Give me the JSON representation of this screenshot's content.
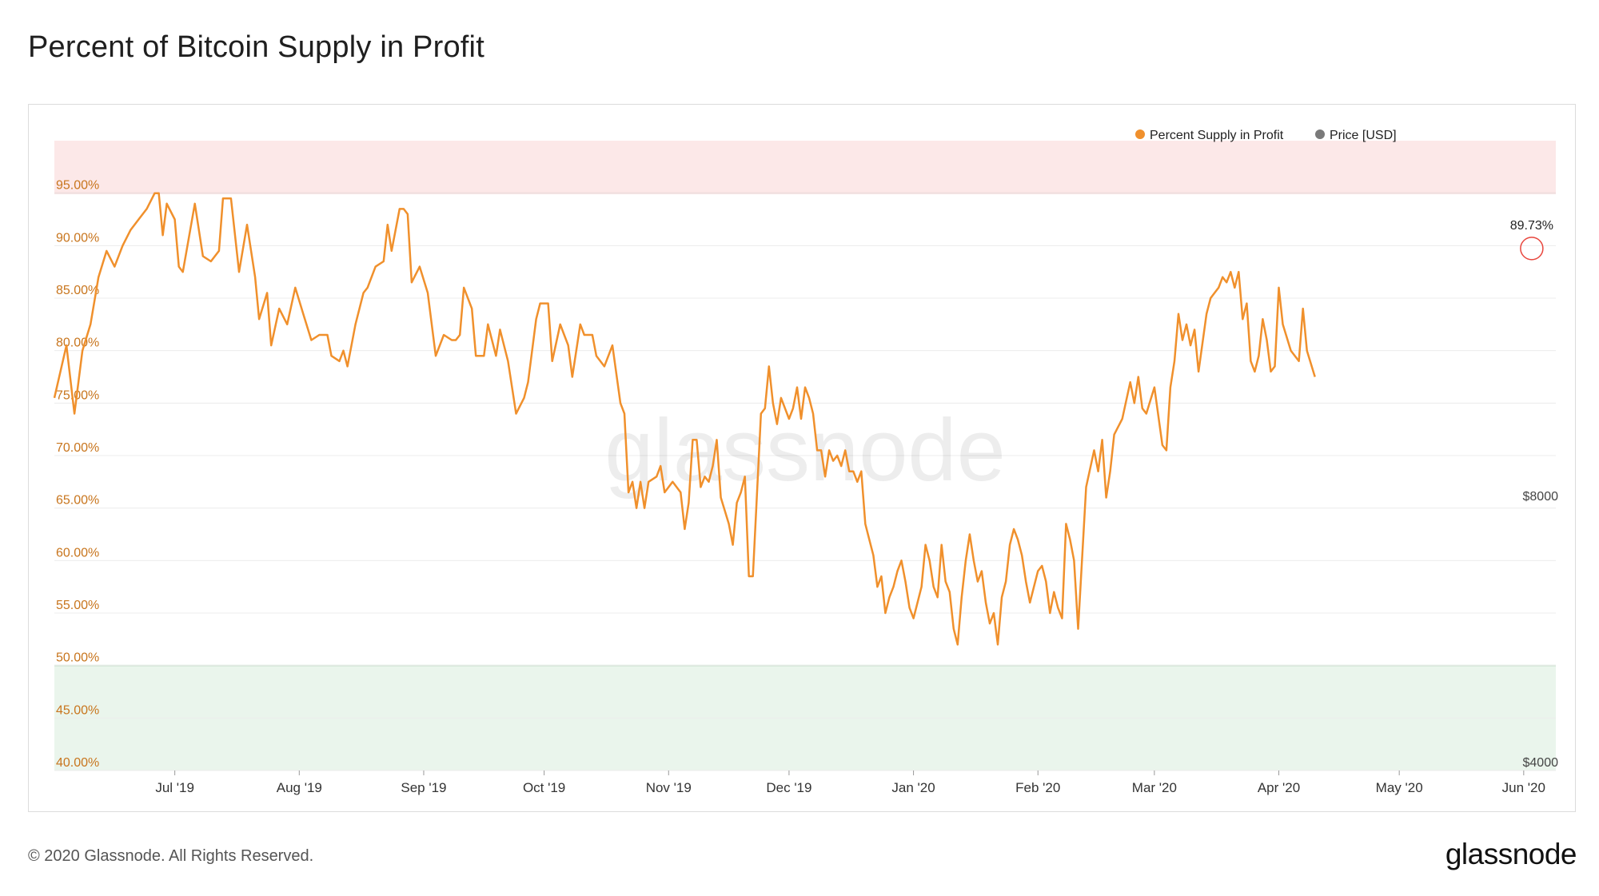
{
  "page": {
    "title": "Percent of Bitcoin Supply in Profit",
    "copyright": "© 2020 Glassnode. All Rights Reserved.",
    "brand": "glassnode",
    "watermark": "glassnode"
  },
  "colors": {
    "profit_line": "#f0902c",
    "price_line": "#7a7a7a",
    "high_zone": "#fce8e8",
    "high_zone_line": "#e9a3a3",
    "low_zone": "#eaf5ec",
    "low_zone_line": "#a8d3b0",
    "grid": "#ececec",
    "marker": "#e8453c"
  },
  "chart_data": {
    "type": "line",
    "title": "Percent of Bitcoin Supply in Profit",
    "legend": {
      "placement": "top-right",
      "items": [
        "Percent Supply in Profit",
        "Price [USD]"
      ]
    },
    "grid": true,
    "left_axis": {
      "ylim": [
        40,
        100
      ],
      "ticks": [
        95,
        90,
        85,
        80,
        75,
        70,
        65,
        60,
        55,
        50,
        45,
        40
      ],
      "tick_labels": [
        "95.00%",
        "90.00%",
        "85.00%",
        "80.00%",
        "75.00%",
        "70.00%",
        "65.00%",
        "60.00%",
        "55.00%",
        "50.00%",
        "45.00%",
        "40.00%"
      ]
    },
    "right_axis": {
      "scale": "log",
      "tick_labels": [
        {
          "value": 8000,
          "label": "$8000"
        },
        {
          "value": 4000,
          "label": "$4000"
        }
      ]
    },
    "x_axis": {
      "range": [
        "2019-06-01",
        "2020-06-09"
      ],
      "ticks": [
        {
          "date": "2019-07-01",
          "label": "Jul '19"
        },
        {
          "date": "2019-08-01",
          "label": "Aug '19"
        },
        {
          "date": "2019-09-01",
          "label": "Sep '19"
        },
        {
          "date": "2019-10-01",
          "label": "Oct '19"
        },
        {
          "date": "2019-11-01",
          "label": "Nov '19"
        },
        {
          "date": "2019-12-01",
          "label": "Dec '19"
        },
        {
          "date": "2020-01-01",
          "label": "Jan '20"
        },
        {
          "date": "2020-02-01",
          "label": "Feb '20"
        },
        {
          "date": "2020-03-01",
          "label": "Mar '20"
        },
        {
          "date": "2020-04-01",
          "label": "Apr '20"
        },
        {
          "date": "2020-05-01",
          "label": "May '20"
        },
        {
          "date": "2020-06-01",
          "label": "Jun '20"
        }
      ]
    },
    "zones": [
      {
        "name": "high",
        "from": 95,
        "to": 100
      },
      {
        "name": "low",
        "from": 40,
        "to": 50
      }
    ],
    "annotation": {
      "date": "2020-06-03",
      "value": 89.73,
      "label": "89.73%"
    },
    "series": [
      {
        "name": "Percent Supply in Profit",
        "axis": "left",
        "points": [
          [
            "2019-06-01",
            75.5
          ],
          [
            "2019-06-04",
            80.5
          ],
          [
            "2019-06-06",
            74.0
          ],
          [
            "2019-06-08",
            80.0
          ],
          [
            "2019-06-10",
            82.5
          ],
          [
            "2019-06-12",
            87.0
          ],
          [
            "2019-06-14",
            89.5
          ],
          [
            "2019-06-16",
            88.0
          ],
          [
            "2019-06-18",
            90.0
          ],
          [
            "2019-06-20",
            91.5
          ],
          [
            "2019-06-22",
            92.5
          ],
          [
            "2019-06-24",
            93.5
          ],
          [
            "2019-06-26",
            95.0
          ],
          [
            "2019-06-27",
            95.0
          ],
          [
            "2019-06-28",
            91.0
          ],
          [
            "2019-06-29",
            94.0
          ],
          [
            "2019-07-01",
            92.5
          ],
          [
            "2019-07-02",
            88.0
          ],
          [
            "2019-07-03",
            87.5
          ],
          [
            "2019-07-06",
            94.0
          ],
          [
            "2019-07-08",
            89.0
          ],
          [
            "2019-07-10",
            88.5
          ],
          [
            "2019-07-12",
            89.5
          ],
          [
            "2019-07-13",
            94.5
          ],
          [
            "2019-07-15",
            94.5
          ],
          [
            "2019-07-17",
            87.5
          ],
          [
            "2019-07-19",
            92.0
          ],
          [
            "2019-07-21",
            87.0
          ],
          [
            "2019-07-22",
            83.0
          ],
          [
            "2019-07-24",
            85.5
          ],
          [
            "2019-07-25",
            80.5
          ],
          [
            "2019-07-27",
            84.0
          ],
          [
            "2019-07-29",
            82.5
          ],
          [
            "2019-07-31",
            86.0
          ],
          [
            "2019-08-02",
            83.5
          ],
          [
            "2019-08-04",
            81.0
          ],
          [
            "2019-08-06",
            81.5
          ],
          [
            "2019-08-08",
            81.5
          ],
          [
            "2019-08-09",
            79.5
          ],
          [
            "2019-08-11",
            79.0
          ],
          [
            "2019-08-12",
            80.0
          ],
          [
            "2019-08-13",
            78.5
          ],
          [
            "2019-08-15",
            82.5
          ],
          [
            "2019-08-17",
            85.5
          ],
          [
            "2019-08-18",
            86.0
          ],
          [
            "2019-08-20",
            88.0
          ],
          [
            "2019-08-22",
            88.5
          ],
          [
            "2019-08-23",
            92.0
          ],
          [
            "2019-08-24",
            89.5
          ],
          [
            "2019-08-26",
            93.5
          ],
          [
            "2019-08-27",
            93.5
          ],
          [
            "2019-08-28",
            93.0
          ],
          [
            "2019-08-29",
            86.5
          ],
          [
            "2019-08-31",
            88.0
          ],
          [
            "2019-09-02",
            85.5
          ],
          [
            "2019-09-04",
            79.5
          ],
          [
            "2019-09-06",
            81.5
          ],
          [
            "2019-09-08",
            81.0
          ],
          [
            "2019-09-09",
            81.0
          ],
          [
            "2019-09-10",
            81.5
          ],
          [
            "2019-09-11",
            86.0
          ],
          [
            "2019-09-13",
            84.0
          ],
          [
            "2019-09-14",
            79.5
          ],
          [
            "2019-09-16",
            79.5
          ],
          [
            "2019-09-17",
            82.5
          ],
          [
            "2019-09-19",
            79.5
          ],
          [
            "2019-09-20",
            82.0
          ],
          [
            "2019-09-22",
            79.0
          ],
          [
            "2019-09-24",
            74.0
          ],
          [
            "2019-09-26",
            75.5
          ],
          [
            "2019-09-27",
            77.0
          ],
          [
            "2019-09-29",
            83.0
          ],
          [
            "2019-09-30",
            84.5
          ],
          [
            "2019-10-01",
            84.5
          ],
          [
            "2019-10-02",
            84.5
          ],
          [
            "2019-10-03",
            79.0
          ],
          [
            "2019-10-05",
            82.5
          ],
          [
            "2019-10-06",
            81.5
          ],
          [
            "2019-10-07",
            80.5
          ],
          [
            "2019-10-08",
            77.5
          ],
          [
            "2019-10-10",
            82.5
          ],
          [
            "2019-10-11",
            81.5
          ],
          [
            "2019-10-13",
            81.5
          ],
          [
            "2019-10-14",
            79.5
          ],
          [
            "2019-10-16",
            78.5
          ],
          [
            "2019-10-18",
            80.5
          ],
          [
            "2019-10-20",
            75.0
          ],
          [
            "2019-10-21",
            74.0
          ],
          [
            "2019-10-22",
            66.5
          ],
          [
            "2019-10-23",
            67.5
          ],
          [
            "2019-10-24",
            65.0
          ],
          [
            "2019-10-25",
            67.5
          ],
          [
            "2019-10-26",
            65.0
          ],
          [
            "2019-10-27",
            67.5
          ],
          [
            "2019-10-29",
            68.0
          ],
          [
            "2019-10-30",
            69.0
          ],
          [
            "2019-10-31",
            66.5
          ],
          [
            "2019-11-02",
            67.5
          ],
          [
            "2019-11-04",
            66.5
          ],
          [
            "2019-11-05",
            63.0
          ],
          [
            "2019-11-06",
            65.5
          ],
          [
            "2019-11-07",
            71.5
          ],
          [
            "2019-11-08",
            71.5
          ],
          [
            "2019-11-09",
            67.0
          ],
          [
            "2019-11-10",
            68.0
          ],
          [
            "2019-11-11",
            67.5
          ],
          [
            "2019-11-12",
            69.0
          ],
          [
            "2019-11-13",
            71.5
          ],
          [
            "2019-11-14",
            66.0
          ],
          [
            "2019-11-16",
            63.5
          ],
          [
            "2019-11-17",
            61.5
          ],
          [
            "2019-11-18",
            65.5
          ],
          [
            "2019-11-19",
            66.5
          ],
          [
            "2019-11-20",
            68.0
          ],
          [
            "2019-11-21",
            58.5
          ],
          [
            "2019-11-22",
            58.5
          ],
          [
            "2019-11-24",
            74.0
          ],
          [
            "2019-11-25",
            74.5
          ],
          [
            "2019-11-26",
            78.5
          ],
          [
            "2019-11-27",
            75.0
          ],
          [
            "2019-11-28",
            73.0
          ],
          [
            "2019-11-29",
            75.5
          ],
          [
            "2019-11-30",
            74.5
          ],
          [
            "2019-12-01",
            73.5
          ],
          [
            "2019-12-02",
            74.5
          ],
          [
            "2019-12-03",
            76.5
          ],
          [
            "2019-12-04",
            73.5
          ],
          [
            "2019-12-05",
            76.5
          ],
          [
            "2019-12-06",
            75.5
          ],
          [
            "2019-12-07",
            74.0
          ],
          [
            "2019-12-08",
            70.5
          ],
          [
            "2019-12-09",
            70.5
          ],
          [
            "2019-12-10",
            68.0
          ],
          [
            "2019-12-11",
            70.5
          ],
          [
            "2019-12-12",
            69.5
          ],
          [
            "2019-12-13",
            70.0
          ],
          [
            "2019-12-14",
            69.0
          ],
          [
            "2019-12-15",
            70.5
          ],
          [
            "2019-12-16",
            68.5
          ],
          [
            "2019-12-17",
            68.5
          ],
          [
            "2019-12-18",
            67.5
          ],
          [
            "2019-12-19",
            68.5
          ],
          [
            "2019-12-20",
            63.5
          ],
          [
            "2019-12-21",
            62.0
          ],
          [
            "2019-12-22",
            60.5
          ],
          [
            "2019-12-23",
            57.5
          ],
          [
            "2019-12-24",
            58.5
          ],
          [
            "2019-12-25",
            55.0
          ],
          [
            "2019-12-26",
            56.5
          ],
          [
            "2019-12-27",
            57.5
          ],
          [
            "2019-12-28",
            59.0
          ],
          [
            "2019-12-29",
            60.0
          ],
          [
            "2019-12-30",
            58.0
          ],
          [
            "2019-12-31",
            55.5
          ],
          [
            "2020-01-01",
            54.5
          ],
          [
            "2020-01-02",
            56.0
          ],
          [
            "2020-01-03",
            57.5
          ],
          [
            "2020-01-04",
            61.5
          ],
          [
            "2020-01-05",
            60.0
          ],
          [
            "2020-01-06",
            57.5
          ],
          [
            "2020-01-07",
            56.5
          ],
          [
            "2020-01-08",
            61.5
          ],
          [
            "2020-01-09",
            58.0
          ],
          [
            "2020-01-10",
            57.0
          ],
          [
            "2020-01-11",
            53.5
          ],
          [
            "2020-01-12",
            52.0
          ],
          [
            "2020-01-13",
            56.5
          ],
          [
            "2020-01-14",
            60.0
          ],
          [
            "2020-01-15",
            62.5
          ],
          [
            "2020-01-16",
            60.0
          ],
          [
            "2020-01-17",
            58.0
          ],
          [
            "2020-01-18",
            59.0
          ],
          [
            "2020-01-19",
            56.0
          ],
          [
            "2020-01-20",
            54.0
          ],
          [
            "2020-01-21",
            55.0
          ],
          [
            "2020-01-22",
            52.0
          ],
          [
            "2020-01-23",
            56.5
          ],
          [
            "2020-01-24",
            58.0
          ],
          [
            "2020-01-25",
            61.5
          ],
          [
            "2020-01-26",
            63.0
          ],
          [
            "2020-01-27",
            62.0
          ],
          [
            "2020-01-28",
            60.5
          ],
          [
            "2020-01-29",
            58.0
          ],
          [
            "2020-01-30",
            56.0
          ],
          [
            "2020-01-31",
            57.5
          ],
          [
            "2020-02-01",
            59.0
          ],
          [
            "2020-02-02",
            59.5
          ],
          [
            "2020-02-03",
            58.0
          ],
          [
            "2020-02-04",
            55.0
          ],
          [
            "2020-02-05",
            57.0
          ],
          [
            "2020-02-06",
            55.5
          ],
          [
            "2020-02-07",
            54.5
          ],
          [
            "2020-02-08",
            63.5
          ],
          [
            "2020-02-09",
            62.0
          ],
          [
            "2020-02-10",
            60.0
          ],
          [
            "2020-02-11",
            53.5
          ],
          [
            "2020-02-13",
            67.0
          ],
          [
            "2020-02-15",
            70.5
          ],
          [
            "2020-02-16",
            68.5
          ],
          [
            "2020-02-17",
            71.5
          ],
          [
            "2020-02-18",
            66.0
          ],
          [
            "2020-02-19",
            68.5
          ],
          [
            "2020-02-20",
            72.0
          ],
          [
            "2020-02-22",
            73.5
          ],
          [
            "2020-02-24",
            77.0
          ],
          [
            "2020-02-25",
            75.0
          ],
          [
            "2020-02-26",
            77.5
          ],
          [
            "2020-02-27",
            74.5
          ],
          [
            "2020-02-28",
            74.0
          ],
          [
            "2020-03-01",
            76.5
          ],
          [
            "2020-03-03",
            71.0
          ],
          [
            "2020-03-04",
            70.5
          ],
          [
            "2020-03-05",
            76.5
          ],
          [
            "2020-03-06",
            79.0
          ],
          [
            "2020-03-07",
            83.5
          ],
          [
            "2020-03-08",
            81.0
          ],
          [
            "2020-03-09",
            82.5
          ],
          [
            "2020-03-10",
            80.5
          ],
          [
            "2020-03-11",
            82.0
          ],
          [
            "2020-03-12",
            78.0
          ],
          [
            "2020-03-14",
            83.5
          ],
          [
            "2020-03-15",
            85.0
          ],
          [
            "2020-03-16",
            85.5
          ],
          [
            "2020-03-17",
            86.0
          ],
          [
            "2020-03-18",
            87.0
          ],
          [
            "2020-03-19",
            86.5
          ],
          [
            "2020-03-20",
            87.5
          ],
          [
            "2020-03-21",
            86.0
          ],
          [
            "2020-03-22",
            87.5
          ],
          [
            "2020-03-23",
            83.0
          ],
          [
            "2020-03-24",
            84.5
          ],
          [
            "2020-03-25",
            79.0
          ],
          [
            "2020-03-26",
            78.0
          ],
          [
            "2020-03-27",
            79.5
          ],
          [
            "2020-03-28",
            83.0
          ],
          [
            "2020-03-29",
            81.0
          ],
          [
            "2020-03-30",
            78.0
          ],
          [
            "2020-03-31",
            78.5
          ],
          [
            "2020-04-01",
            86.0
          ],
          [
            "2020-04-02",
            82.5
          ],
          [
            "2020-04-04",
            80.0
          ],
          [
            "2020-04-06",
            79.0
          ],
          [
            "2020-04-07",
            84.0
          ],
          [
            "2020-04-08",
            80.0
          ],
          [
            "2020-04-10",
            77.5
          ]
        ]
      },
      {
        "name": "Price [USD]",
        "axis": "right",
        "points": []
      }
    ]
  }
}
